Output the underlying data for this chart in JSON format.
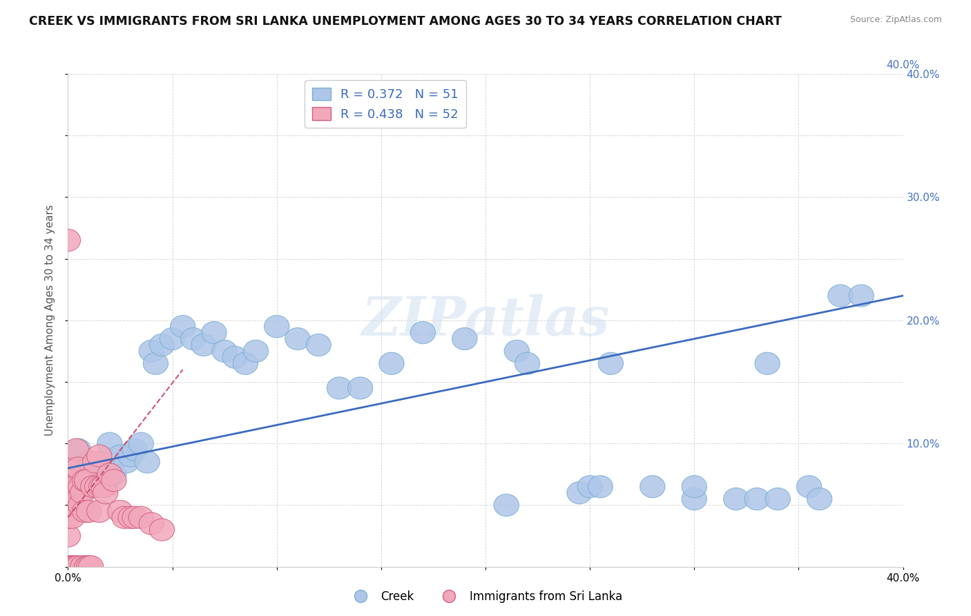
{
  "title": "CREEK VS IMMIGRANTS FROM SRI LANKA UNEMPLOYMENT AMONG AGES 30 TO 34 YEARS CORRELATION CHART",
  "source": "Source: ZipAtlas.com",
  "ylabel": "Unemployment Among Ages 30 to 34 years",
  "xlim": [
    0.0,
    0.4
  ],
  "ylim": [
    0.0,
    0.4
  ],
  "xticks": [
    0.0,
    0.05,
    0.1,
    0.15,
    0.2,
    0.25,
    0.3,
    0.35,
    0.4
  ],
  "yticks": [
    0.0,
    0.05,
    0.1,
    0.15,
    0.2,
    0.25,
    0.3,
    0.35,
    0.4
  ],
  "xticklabels_bottom": [
    "0.0%",
    "",
    "",
    "",
    "",
    "",
    "",
    "",
    "40.0%"
  ],
  "yticklabels_right": [
    "",
    "",
    "10.0%",
    "",
    "20.0%",
    "",
    "30.0%",
    "",
    "40.0%"
  ],
  "creek_color": "#aec6e8",
  "creek_edge_color": "#7aafd4",
  "srilanka_color": "#f2a8bb",
  "srilanka_edge_color": "#d06080",
  "creek_line_color": "#3a6bbf",
  "srilanka_line_color": "#d05070",
  "R_creek": 0.372,
  "N_creek": 51,
  "R_srilanka": 0.438,
  "N_srilanka": 52,
  "watermark": "ZIPatlas",
  "legend_r_color": "#3a6bbf",
  "creek_x": [
    0.005,
    0.01,
    0.012,
    0.015,
    0.018,
    0.02,
    0.022,
    0.025,
    0.028,
    0.03,
    0.032,
    0.035,
    0.038,
    0.04,
    0.042,
    0.045,
    0.05,
    0.055,
    0.06,
    0.065,
    0.07,
    0.075,
    0.08,
    0.085,
    0.09,
    0.1,
    0.11,
    0.12,
    0.13,
    0.14,
    0.155,
    0.17,
    0.19,
    0.21,
    0.215,
    0.22,
    0.245,
    0.25,
    0.255,
    0.26,
    0.28,
    0.3,
    0.3,
    0.32,
    0.33,
    0.335,
    0.34,
    0.355,
    0.36,
    0.37,
    0.38
  ],
  "creek_y": [
    0.095,
    0.085,
    0.07,
    0.08,
    0.065,
    0.1,
    0.075,
    0.09,
    0.085,
    0.09,
    0.095,
    0.1,
    0.085,
    0.175,
    0.165,
    0.18,
    0.185,
    0.195,
    0.185,
    0.18,
    0.19,
    0.175,
    0.17,
    0.165,
    0.175,
    0.195,
    0.185,
    0.18,
    0.145,
    0.145,
    0.165,
    0.19,
    0.185,
    0.05,
    0.175,
    0.165,
    0.06,
    0.065,
    0.065,
    0.165,
    0.065,
    0.055,
    0.065,
    0.055,
    0.055,
    0.165,
    0.055,
    0.065,
    0.055,
    0.22,
    0.22
  ],
  "srilanka_x": [
    0.0,
    0.0,
    0.0,
    0.0,
    0.0,
    0.0,
    0.0,
    0.0,
    0.0,
    0.0,
    0.001,
    0.001,
    0.002,
    0.002,
    0.002,
    0.002,
    0.003,
    0.003,
    0.004,
    0.004,
    0.004,
    0.005,
    0.005,
    0.005,
    0.006,
    0.006,
    0.007,
    0.007,
    0.008,
    0.008,
    0.009,
    0.009,
    0.01,
    0.01,
    0.011,
    0.012,
    0.013,
    0.014,
    0.015,
    0.015,
    0.016,
    0.017,
    0.018,
    0.02,
    0.022,
    0.025,
    0.027,
    0.03,
    0.032,
    0.035,
    0.04,
    0.045
  ],
  "srilanka_y": [
    0.265,
    0.0,
    0.045,
    0.025,
    0.055,
    0.0,
    0.0,
    0.04,
    0.06,
    0.08,
    0.07,
    0.0,
    0.05,
    0.065,
    0.04,
    0.0,
    0.0,
    0.0,
    0.095,
    0.065,
    0.0,
    0.08,
    0.055,
    0.0,
    0.065,
    0.05,
    0.06,
    0.0,
    0.07,
    0.045,
    0.07,
    0.0,
    0.045,
    0.0,
    0.0,
    0.065,
    0.085,
    0.065,
    0.045,
    0.09,
    0.065,
    0.065,
    0.06,
    0.075,
    0.07,
    0.045,
    0.04,
    0.04,
    0.04,
    0.04,
    0.035,
    0.03
  ],
  "creek_line_x": [
    0.0,
    0.4
  ],
  "creek_line_y": [
    0.08,
    0.22
  ],
  "srilanka_line_x": [
    0.0,
    0.055
  ],
  "srilanka_line_y": [
    0.04,
    0.16
  ]
}
